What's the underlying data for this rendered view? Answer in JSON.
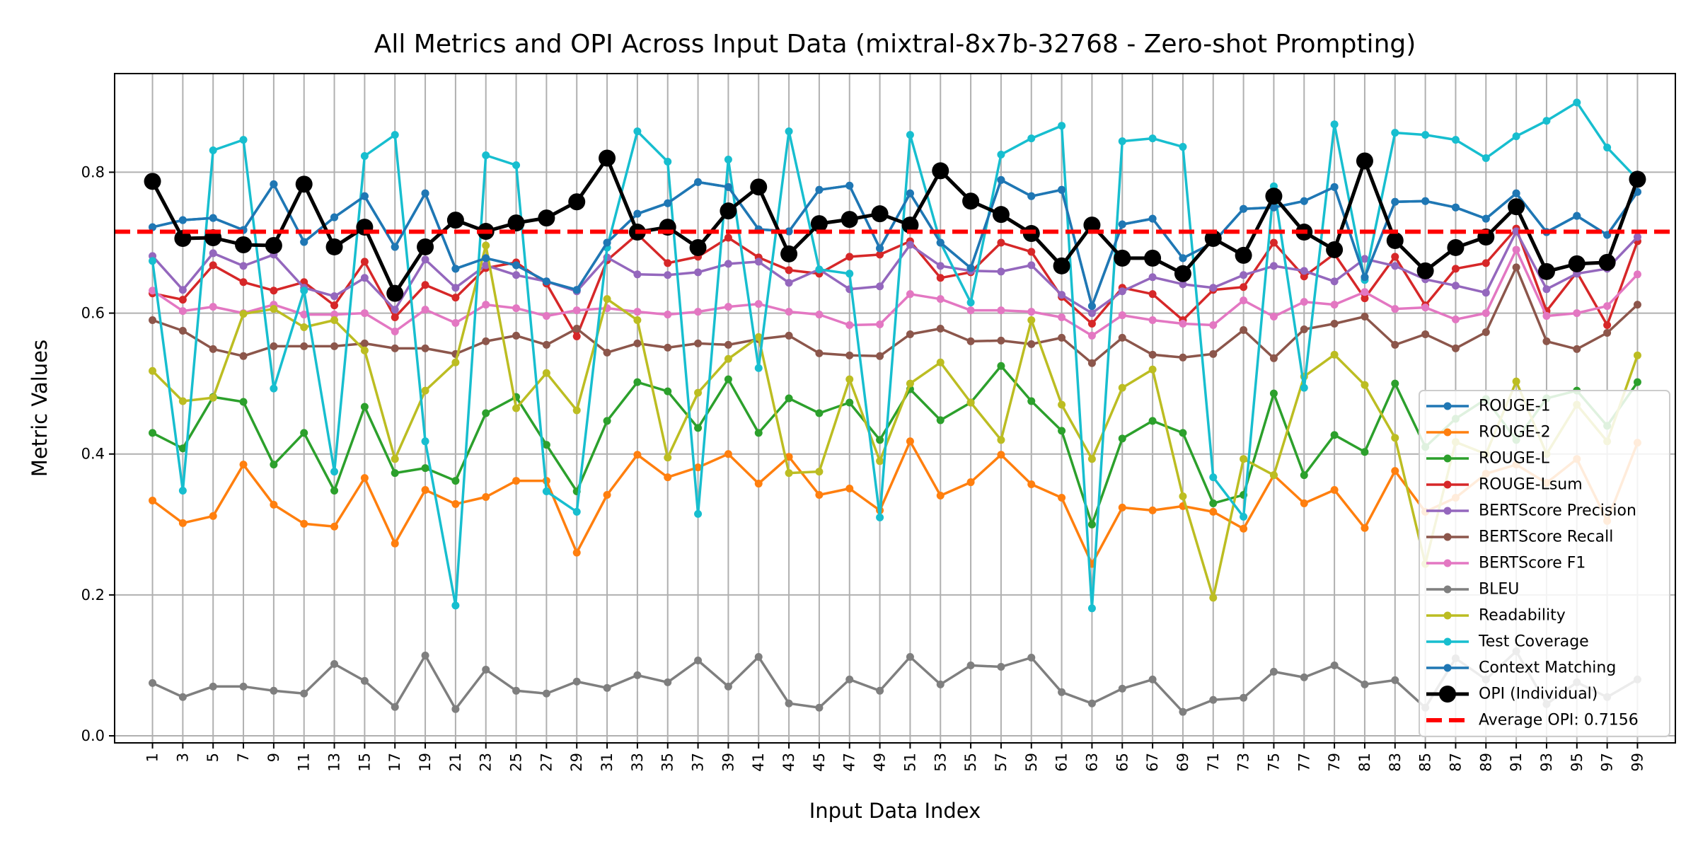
{
  "chart_data": {
    "type": "line",
    "title": "All Metrics and OPI Across Input Data (mixtral-8x7b-32768 - Zero-shot Prompting)",
    "xlabel": "Input Data Index",
    "ylabel": "Metric Values",
    "xlim": [
      -1.5,
      101.5
    ],
    "ylim": [
      -0.01,
      0.94
    ],
    "grid": true,
    "legend_position": "lower-right",
    "x": [
      1,
      3,
      5,
      7,
      9,
      11,
      13,
      15,
      17,
      19,
      21,
      23,
      25,
      27,
      29,
      31,
      33,
      35,
      37,
      39,
      41,
      43,
      45,
      47,
      49,
      51,
      53,
      55,
      57,
      59,
      61,
      63,
      65,
      67,
      69,
      71,
      73,
      75,
      77,
      79,
      81,
      83,
      85,
      87,
      89,
      91,
      93,
      95,
      97,
      99
    ],
    "x_tick_labels": [
      "1",
      "3",
      "5",
      "7",
      "9",
      "11",
      "13",
      "15",
      "17",
      "19",
      "21",
      "23",
      "25",
      "27",
      "29",
      "31",
      "33",
      "35",
      "37",
      "39",
      "41",
      "43",
      "45",
      "47",
      "49",
      "51",
      "53",
      "55",
      "57",
      "59",
      "61",
      "63",
      "65",
      "67",
      "69",
      "71",
      "73",
      "75",
      "77",
      "79",
      "81",
      "83",
      "85",
      "87",
      "89",
      "91",
      "93",
      "95",
      "97",
      "99"
    ],
    "y_ticks": [
      0.0,
      0.2,
      0.4,
      0.6,
      0.8
    ],
    "y_tick_labels": [
      "0.0",
      "0.2",
      "0.4",
      "0.6",
      "0.8"
    ],
    "average_opi": {
      "value": 0.7156,
      "label": "Average OPI: 0.7156",
      "color": "#ff0000"
    },
    "series": [
      {
        "name": "ROUGE-1",
        "color": "#1f77b4",
        "values": [
          0.722,
          0.732,
          0.735,
          0.718,
          0.783,
          0.701,
          0.736,
          0.766,
          0.694,
          0.77,
          0.663,
          0.678,
          0.668,
          0.645,
          0.633,
          0.7,
          0.741,
          0.756,
          0.786,
          0.779,
          0.719,
          0.716,
          0.775,
          0.781,
          0.692,
          0.77,
          0.7,
          0.664,
          0.789,
          0.766,
          0.775,
          0.61,
          0.726,
          0.734,
          0.678,
          0.7,
          0.748,
          0.75,
          0.759,
          0.779,
          0.651,
          0.758,
          0.759,
          0.75,
          0.734,
          0.77,
          0.715,
          0.738,
          0.711,
          0.772
        ]
      },
      {
        "name": "ROUGE-2",
        "color": "#ff7f0e",
        "values": [
          0.334,
          0.302,
          0.312,
          0.385,
          0.328,
          0.301,
          0.297,
          0.366,
          0.273,
          0.349,
          0.329,
          0.339,
          0.362,
          0.362,
          0.26,
          0.342,
          0.399,
          0.367,
          0.381,
          0.4,
          0.358,
          0.396,
          0.342,
          0.351,
          0.32,
          0.418,
          0.341,
          0.36,
          0.399,
          0.357,
          0.338,
          0.244,
          0.324,
          0.32,
          0.326,
          0.318,
          0.294,
          0.37,
          0.33,
          0.349,
          0.295,
          0.376,
          0.318,
          0.338,
          0.372,
          0.385,
          0.359,
          0.393,
          0.305,
          0.416
        ]
      },
      {
        "name": "ROUGE-L",
        "color": "#2ca02c",
        "values": [
          0.43,
          0.408,
          0.481,
          0.474,
          0.385,
          0.43,
          0.348,
          0.467,
          0.373,
          0.38,
          0.362,
          0.458,
          0.481,
          0.413,
          0.347,
          0.447,
          0.502,
          0.489,
          0.437,
          0.506,
          0.43,
          0.479,
          0.458,
          0.473,
          0.42,
          0.492,
          0.448,
          0.473,
          0.525,
          0.475,
          0.433,
          0.3,
          0.422,
          0.447,
          0.43,
          0.33,
          0.342,
          0.486,
          0.37,
          0.427,
          0.403,
          0.5,
          0.41,
          0.45,
          0.478,
          0.42,
          0.479,
          0.49,
          0.44,
          0.502
        ]
      },
      {
        "name": "ROUGE-Lsum",
        "color": "#d62728",
        "values": [
          0.628,
          0.619,
          0.668,
          0.644,
          0.632,
          0.644,
          0.611,
          0.673,
          0.594,
          0.64,
          0.622,
          0.664,
          0.672,
          0.642,
          0.567,
          0.675,
          0.712,
          0.671,
          0.68,
          0.707,
          0.679,
          0.661,
          0.656,
          0.68,
          0.683,
          0.702,
          0.65,
          0.658,
          0.7,
          0.687,
          0.623,
          0.585,
          0.636,
          0.627,
          0.59,
          0.633,
          0.637,
          0.7,
          0.652,
          0.684,
          0.621,
          0.68,
          0.611,
          0.663,
          0.671,
          0.72,
          0.603,
          0.658,
          0.583,
          0.702
        ]
      },
      {
        "name": "BERTScore Precision",
        "color": "#9467bd",
        "values": [
          0.681,
          0.633,
          0.685,
          0.667,
          0.683,
          0.636,
          0.624,
          0.65,
          0.605,
          0.676,
          0.636,
          0.668,
          0.654,
          0.645,
          0.631,
          0.679,
          0.655,
          0.654,
          0.658,
          0.67,
          0.673,
          0.643,
          0.662,
          0.634,
          0.638,
          0.697,
          0.667,
          0.66,
          0.659,
          0.668,
          0.626,
          0.6,
          0.631,
          0.651,
          0.641,
          0.636,
          0.654,
          0.667,
          0.66,
          0.645,
          0.677,
          0.667,
          0.648,
          0.639,
          0.629,
          0.716,
          0.634,
          0.656,
          0.663,
          0.708
        ]
      },
      {
        "name": "BERTScore Recall",
        "color": "#8c564b",
        "values": [
          0.59,
          0.575,
          0.549,
          0.539,
          0.553,
          0.553,
          0.553,
          0.557,
          0.55,
          0.55,
          0.542,
          0.56,
          0.568,
          0.555,
          0.578,
          0.544,
          0.557,
          0.551,
          0.557,
          0.555,
          0.563,
          0.568,
          0.543,
          0.54,
          0.539,
          0.57,
          0.578,
          0.56,
          0.561,
          0.556,
          0.565,
          0.529,
          0.565,
          0.541,
          0.537,
          0.542,
          0.576,
          0.536,
          0.577,
          0.585,
          0.595,
          0.555,
          0.57,
          0.55,
          0.573,
          0.665,
          0.56,
          0.549,
          0.572,
          0.612
        ]
      },
      {
        "name": "BERTScore F1",
        "color": "#e377c2",
        "values": [
          0.632,
          0.603,
          0.609,
          0.6,
          0.612,
          0.598,
          0.598,
          0.6,
          0.574,
          0.605,
          0.586,
          0.612,
          0.607,
          0.596,
          0.604,
          0.607,
          0.602,
          0.598,
          0.602,
          0.609,
          0.613,
          0.602,
          0.598,
          0.583,
          0.584,
          0.627,
          0.62,
          0.604,
          0.604,
          0.602,
          0.594,
          0.568,
          0.597,
          0.59,
          0.585,
          0.583,
          0.618,
          0.595,
          0.616,
          0.612,
          0.63,
          0.606,
          0.608,
          0.591,
          0.6,
          0.69,
          0.596,
          0.6,
          0.61,
          0.655
        ]
      },
      {
        "name": "BLEU",
        "color": "#7f7f7f",
        "values": [
          0.075,
          0.055,
          0.07,
          0.07,
          0.064,
          0.06,
          0.102,
          0.078,
          0.041,
          0.114,
          0.038,
          0.094,
          0.064,
          0.06,
          0.077,
          0.068,
          0.086,
          0.076,
          0.107,
          0.07,
          0.112,
          0.046,
          0.04,
          0.08,
          0.064,
          0.112,
          0.073,
          0.1,
          0.098,
          0.111,
          0.062,
          0.046,
          0.067,
          0.08,
          0.034,
          0.051,
          0.054,
          0.091,
          0.083,
          0.1,
          0.073,
          0.079,
          0.04,
          0.11,
          0.08,
          0.12,
          0.045,
          0.076,
          0.055,
          0.08
        ]
      },
      {
        "name": "Readability",
        "color": "#bcbd22",
        "values": [
          0.518,
          0.475,
          0.48,
          0.599,
          0.606,
          0.58,
          0.59,
          0.547,
          0.393,
          0.49,
          0.53,
          0.696,
          0.465,
          0.515,
          0.462,
          0.62,
          0.59,
          0.395,
          0.487,
          0.535,
          0.566,
          0.373,
          0.375,
          0.506,
          0.39,
          0.5,
          0.53,
          0.473,
          0.42,
          0.59,
          0.47,
          0.393,
          0.494,
          0.52,
          0.34,
          0.196,
          0.393,
          0.37,
          0.51,
          0.541,
          0.498,
          0.423,
          0.244,
          0.417,
          0.4,
          0.503,
          0.4,
          0.47,
          0.418,
          0.54
        ]
      },
      {
        "name": "Test Coverage",
        "color": "#17becf",
        "values": [
          0.674,
          0.348,
          0.831,
          0.846,
          0.493,
          0.632,
          0.375,
          0.823,
          0.853,
          0.418,
          0.185,
          0.824,
          0.81,
          0.347,
          0.318,
          0.693,
          0.858,
          0.815,
          0.315,
          0.818,
          0.522,
          0.858,
          0.662,
          0.656,
          0.31,
          0.853,
          0.7,
          0.615,
          0.825,
          0.848,
          0.866,
          0.181,
          0.844,
          0.848,
          0.836,
          0.367,
          0.311,
          0.78,
          0.494,
          0.868,
          0.647,
          0.856,
          0.853,
          0.846,
          0.82,
          0.851,
          0.873,
          0.899,
          0.835,
          0.79
        ]
      },
      {
        "name": "Context Matching",
        "color": "#1f77b4",
        "values": [
          0.722,
          0.732,
          0.735,
          0.718,
          0.783,
          0.701,
          0.736,
          0.766,
          0.694,
          0.77,
          0.663,
          0.678,
          0.668,
          0.645,
          0.633,
          0.7,
          0.741,
          0.756,
          0.786,
          0.779,
          0.719,
          0.716,
          0.775,
          0.781,
          0.692,
          0.77,
          0.7,
          0.664,
          0.789,
          0.766,
          0.775,
          0.61,
          0.726,
          0.734,
          0.678,
          0.7,
          0.748,
          0.75,
          0.759,
          0.779,
          0.651,
          0.758,
          0.759,
          0.75,
          0.734,
          0.77,
          0.715,
          0.738,
          0.711,
          0.772
        ]
      },
      {
        "name": "OPI (Individual)",
        "color": "#000000",
        "values": [
          0.787,
          0.706,
          0.707,
          0.697,
          0.696,
          0.783,
          0.694,
          0.722,
          0.628,
          0.694,
          0.732,
          0.716,
          0.728,
          0.735,
          0.758,
          0.82,
          0.715,
          0.722,
          0.693,
          0.745,
          0.779,
          0.684,
          0.727,
          0.733,
          0.741,
          0.725,
          0.802,
          0.759,
          0.74,
          0.713,
          0.667,
          0.725,
          0.678,
          0.678,
          0.656,
          0.706,
          0.682,
          0.766,
          0.715,
          0.69,
          0.816,
          0.703,
          0.66,
          0.693,
          0.708,
          0.751,
          0.659,
          0.67,
          0.672,
          0.79
        ]
      }
    ]
  }
}
